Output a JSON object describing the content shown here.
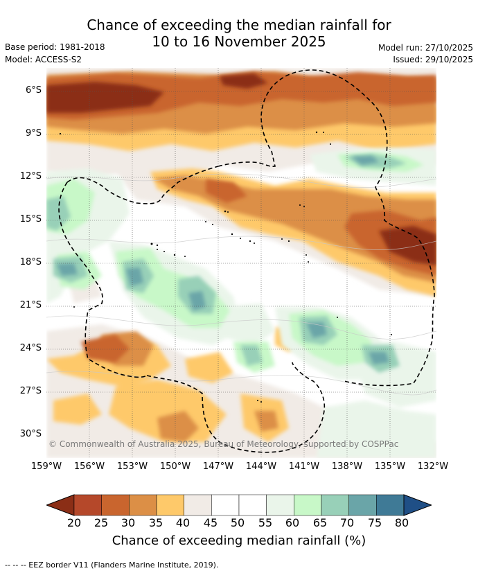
{
  "header": {
    "title_line1": "Chance of exceeding the median rainfall for",
    "title_line2": "10 to 16 November 2025",
    "base_period": "Base period: 1981-2018",
    "model": "Model: ACCESS-S2",
    "model_run": "Model run: 27/10/2025",
    "issued": "Issued: 29/10/2025"
  },
  "map": {
    "lat_ticks": [
      "6°S",
      "9°S",
      "12°S",
      "15°S",
      "18°S",
      "21°S",
      "24°S",
      "27°S",
      "30°S"
    ],
    "lon_ticks": [
      "159°W",
      "156°W",
      "153°W",
      "150°W",
      "147°W",
      "144°W",
      "141°W",
      "138°W",
      "135°W",
      "132°W"
    ],
    "copyright": "© Commonwealth of Australia 2025, Bureau of Meteorology, supported by COSPPac"
  },
  "colorbar": {
    "ticks": [
      "20",
      "25",
      "30",
      "35",
      "40",
      "45",
      "50",
      "55",
      "60",
      "65",
      "70",
      "75",
      "80"
    ],
    "colors": [
      "#8b2e16",
      "#b5482a",
      "#c9652e",
      "#dc8f46",
      "#fec96a",
      "#f1ebe6",
      "#ffffff",
      "#ffffff",
      "#eaf5ea",
      "#c8f8c8",
      "#98d0b8",
      "#6aa5a8",
      "#3f7a96",
      "#1f4f86"
    ],
    "label": "Chance of exceeding median rainfall (%)"
  },
  "footnote": "-- -- -- EEZ border V11 (Flanders Marine Institute, 2019)."
}
